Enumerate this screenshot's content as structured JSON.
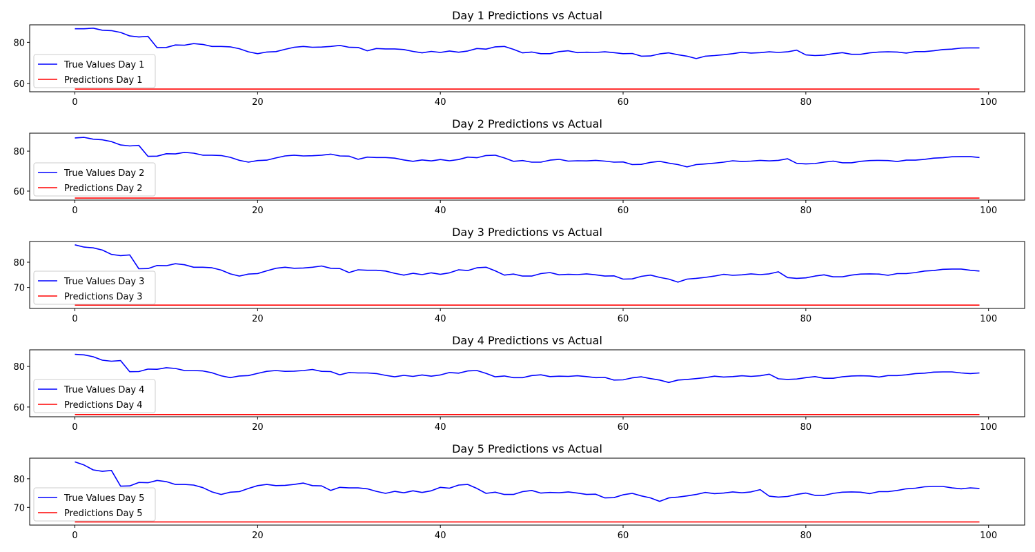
{
  "colors": {
    "true_values": "#0000ff",
    "predictions": "#ff0000"
  },
  "chart_data": [
    {
      "type": "line",
      "title": "Day 1 Predictions vs Actual",
      "xlim": [
        -4.95,
        103.95
      ],
      "ylim": [
        56,
        88.5
      ],
      "xticks": [
        0,
        20,
        40,
        60,
        80,
        100
      ],
      "yticks": [
        60,
        80
      ],
      "legend": "lower-left",
      "grid": false,
      "series": [
        {
          "name": "True Values Day 1",
          "color": "#0000ff",
          "values": [
            86.6,
            86.6,
            86.9,
            85.9,
            85.7,
            84.8,
            83.1,
            82.6,
            82.9,
            77.4,
            77.5,
            78.7,
            78.6,
            79.4,
            79.0,
            78.0,
            78.0,
            77.8,
            76.9,
            75.4,
            74.5,
            75.3,
            75.5,
            76.6,
            77.6,
            78.0,
            77.6,
            77.7,
            78.0,
            78.5,
            77.6,
            77.5,
            75.9,
            77.0,
            76.8,
            76.8,
            76.5,
            75.6,
            74.9,
            75.6,
            75.1,
            75.8,
            75.2,
            75.8,
            77.0,
            76.7,
            77.8,
            78.0,
            76.6,
            74.9,
            75.3,
            74.5,
            74.5,
            75.5,
            75.9,
            75.0,
            75.2,
            75.1,
            75.4,
            75.0,
            74.5,
            74.6,
            73.3,
            73.4,
            74.4,
            74.9,
            74.0,
            73.3,
            72.1,
            73.3,
            73.6,
            74.0,
            74.5,
            75.2,
            74.8,
            75.0,
            75.4,
            75.1,
            75.4,
            76.2,
            73.9,
            73.6,
            73.8,
            74.5,
            75.0,
            74.2,
            74.2,
            74.9,
            75.3,
            75.4,
            75.3,
            74.8,
            75.5,
            75.5,
            75.9,
            76.5,
            76.7,
            77.2,
            77.3,
            77.3
          ]
        },
        {
          "name": "Predictions Day 1",
          "color": "#ff0000",
          "constant": 57.3,
          "count": 100
        }
      ]
    },
    {
      "type": "line",
      "title": "Day 2 Predictions vs Actual",
      "xlim": [
        -4.95,
        103.95
      ],
      "ylim": [
        55.5,
        89
      ],
      "xticks": [
        0,
        20,
        40,
        60,
        80,
        100
      ],
      "yticks": [
        60,
        80
      ],
      "legend": "lower-left",
      "grid": false,
      "series": [
        {
          "name": "True Values Day 2",
          "color": "#0000ff",
          "values": [
            86.6,
            86.9,
            86.0,
            85.7,
            84.8,
            83.1,
            82.6,
            82.9,
            77.4,
            77.5,
            78.7,
            78.6,
            79.4,
            79.0,
            78.0,
            78.0,
            77.8,
            76.9,
            75.4,
            74.5,
            75.3,
            75.5,
            76.6,
            77.6,
            78.0,
            77.6,
            77.7,
            78.0,
            78.5,
            77.6,
            77.5,
            75.9,
            77.0,
            76.8,
            76.8,
            76.5,
            75.6,
            74.9,
            75.6,
            75.1,
            75.8,
            75.2,
            75.8,
            77.0,
            76.7,
            77.8,
            78.0,
            76.6,
            74.9,
            75.3,
            74.5,
            74.5,
            75.5,
            75.9,
            75.0,
            75.2,
            75.1,
            75.4,
            75.0,
            74.5,
            74.6,
            73.3,
            73.4,
            74.4,
            74.9,
            74.0,
            73.3,
            72.1,
            73.3,
            73.6,
            74.0,
            74.5,
            75.2,
            74.8,
            75.0,
            75.4,
            75.1,
            75.4,
            76.2,
            73.9,
            73.6,
            73.8,
            74.5,
            75.0,
            74.2,
            74.2,
            74.9,
            75.3,
            75.4,
            75.3,
            74.8,
            75.5,
            75.5,
            75.9,
            76.5,
            76.7,
            77.2,
            77.3,
            77.3,
            76.8
          ]
        },
        {
          "name": "Predictions Day 2",
          "color": "#ff0000",
          "constant": 56.5,
          "count": 100
        }
      ]
    },
    {
      "type": "line",
      "title": "Day 3 Predictions vs Actual",
      "xlim": [
        -4.95,
        103.95
      ],
      "ylim": [
        61.7,
        88.2
      ],
      "xticks": [
        0,
        20,
        40,
        60,
        80,
        100
      ],
      "yticks": [
        70,
        80
      ],
      "legend": "lower-left",
      "grid": false,
      "series": [
        {
          "name": "True Values Day 3",
          "color": "#0000ff",
          "values": [
            86.9,
            86.0,
            85.7,
            84.8,
            83.1,
            82.6,
            82.9,
            77.4,
            77.5,
            78.7,
            78.6,
            79.4,
            79.0,
            78.0,
            78.0,
            77.8,
            76.9,
            75.4,
            74.5,
            75.3,
            75.5,
            76.6,
            77.6,
            78.0,
            77.6,
            77.7,
            78.0,
            78.5,
            77.6,
            77.5,
            75.9,
            77.0,
            76.8,
            76.8,
            76.5,
            75.6,
            74.9,
            75.6,
            75.1,
            75.8,
            75.2,
            75.8,
            77.0,
            76.7,
            77.8,
            78.0,
            76.6,
            74.9,
            75.3,
            74.5,
            74.5,
            75.5,
            75.9,
            75.0,
            75.2,
            75.1,
            75.4,
            75.0,
            74.5,
            74.6,
            73.3,
            73.4,
            74.4,
            74.9,
            74.0,
            73.3,
            72.1,
            73.3,
            73.6,
            74.0,
            74.5,
            75.2,
            74.8,
            75.0,
            75.4,
            75.1,
            75.4,
            76.2,
            73.9,
            73.6,
            73.8,
            74.5,
            75.0,
            74.2,
            74.2,
            74.9,
            75.3,
            75.4,
            75.3,
            74.8,
            75.5,
            75.5,
            75.9,
            76.5,
            76.7,
            77.2,
            77.3,
            77.3,
            76.8,
            76.5
          ]
        },
        {
          "name": "Predictions Day 3",
          "color": "#ff0000",
          "constant": 63.0,
          "count": 100
        }
      ]
    },
    {
      "type": "line",
      "title": "Day 4 Predictions vs Actual",
      "xlim": [
        -4.95,
        103.95
      ],
      "ylim": [
        55.2,
        88.2
      ],
      "xticks": [
        0,
        20,
        40,
        60,
        80,
        100
      ],
      "yticks": [
        60,
        80
      ],
      "legend": "lower-left",
      "grid": false,
      "series": [
        {
          "name": "True Values Day 4",
          "color": "#0000ff",
          "values": [
            86.0,
            85.7,
            84.8,
            83.1,
            82.6,
            82.9,
            77.4,
            77.5,
            78.7,
            78.6,
            79.4,
            79.0,
            78.0,
            78.0,
            77.8,
            76.9,
            75.4,
            74.5,
            75.3,
            75.5,
            76.6,
            77.6,
            78.0,
            77.6,
            77.7,
            78.0,
            78.5,
            77.6,
            77.5,
            75.9,
            77.0,
            76.8,
            76.8,
            76.5,
            75.6,
            74.9,
            75.6,
            75.1,
            75.8,
            75.2,
            75.8,
            77.0,
            76.7,
            77.8,
            78.0,
            76.6,
            74.9,
            75.3,
            74.5,
            74.5,
            75.5,
            75.9,
            75.0,
            75.2,
            75.1,
            75.4,
            75.0,
            74.5,
            74.6,
            73.3,
            73.4,
            74.4,
            74.9,
            74.0,
            73.3,
            72.1,
            73.3,
            73.6,
            74.0,
            74.5,
            75.2,
            74.8,
            75.0,
            75.4,
            75.1,
            75.4,
            76.2,
            73.9,
            73.6,
            73.8,
            74.5,
            75.0,
            74.2,
            74.2,
            74.9,
            75.3,
            75.4,
            75.3,
            74.8,
            75.5,
            75.5,
            75.9,
            76.5,
            76.7,
            77.2,
            77.3,
            77.3,
            76.8,
            76.5,
            76.8
          ]
        },
        {
          "name": "Predictions Day 4",
          "color": "#ff0000",
          "constant": 56.3,
          "count": 100
        }
      ]
    },
    {
      "type": "line",
      "title": "Day 5 Predictions vs Actual",
      "xlim": [
        -4.95,
        103.95
      ],
      "ylim": [
        63.8,
        87.2
      ],
      "xticks": [
        0,
        20,
        40,
        60,
        80,
        100
      ],
      "yticks": [
        70,
        80
      ],
      "legend": "lower-left",
      "grid": false,
      "series": [
        {
          "name": "True Values Day 5",
          "color": "#0000ff",
          "values": [
            85.9,
            84.8,
            83.1,
            82.6,
            82.9,
            77.4,
            77.5,
            78.7,
            78.6,
            79.4,
            79.0,
            78.0,
            78.0,
            77.8,
            76.9,
            75.4,
            74.5,
            75.3,
            75.5,
            76.6,
            77.6,
            78.0,
            77.6,
            77.7,
            78.0,
            78.5,
            77.6,
            77.5,
            75.9,
            77.0,
            76.8,
            76.8,
            76.5,
            75.6,
            74.9,
            75.6,
            75.1,
            75.8,
            75.2,
            75.8,
            77.0,
            76.7,
            77.8,
            78.0,
            76.6,
            74.9,
            75.3,
            74.5,
            74.5,
            75.5,
            75.9,
            75.0,
            75.2,
            75.1,
            75.4,
            75.0,
            74.5,
            74.6,
            73.3,
            73.4,
            74.4,
            74.9,
            74.0,
            73.3,
            72.1,
            73.3,
            73.6,
            74.0,
            74.5,
            75.2,
            74.8,
            75.0,
            75.4,
            75.1,
            75.4,
            76.2,
            73.9,
            73.6,
            73.8,
            74.5,
            75.0,
            74.2,
            74.2,
            74.9,
            75.3,
            75.4,
            75.3,
            74.8,
            75.5,
            75.5,
            75.9,
            76.5,
            76.7,
            77.2,
            77.3,
            77.3,
            76.8,
            76.5,
            76.8,
            76.6
          ]
        },
        {
          "name": "Predictions Day 5",
          "color": "#ff0000",
          "constant": 64.9,
          "count": 100
        }
      ]
    }
  ]
}
